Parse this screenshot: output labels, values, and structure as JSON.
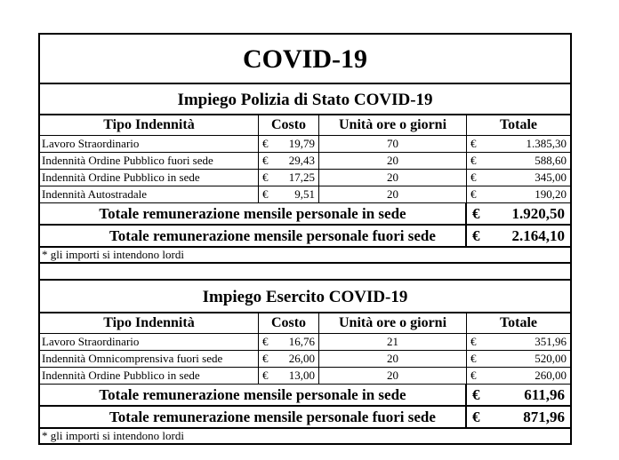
{
  "title": "COVID-19",
  "currency": "€",
  "sections": [
    {
      "heading": "Impiego Polizia di Stato COVID-19",
      "columns": [
        "Tipo Indennità",
        "Costo",
        "Unità ore o giorni",
        "Totale"
      ],
      "rows": [
        {
          "tipo": "Lavoro Straordinario",
          "costo": "19,79",
          "unita": "70",
          "totale": "1.385,30"
        },
        {
          "tipo": "Indennità Ordine Pubblico fuori sede",
          "costo": "29,43",
          "unita": "20",
          "totale": "588,60"
        },
        {
          "tipo": "Indennità Ordine Pubblico in sede",
          "costo": "17,25",
          "unita": "20",
          "totale": "345,00"
        },
        {
          "tipo": "Indennità Autostradale",
          "costo": "9,51",
          "unita": "20",
          "totale": "190,20"
        }
      ],
      "totals": [
        {
          "label": "Totale remunerazione mensile personale in sede",
          "value": "1.920,50"
        },
        {
          "label": "Totale remunerazione mensile personale fuori sede",
          "value": "2.164,10"
        }
      ],
      "note": "* gli importi si intendono lordi"
    },
    {
      "heading": "Impiego Esercito COVID-19",
      "columns": [
        "Tipo Indennità",
        "Costo",
        "Unità ore o giorni",
        "Totale"
      ],
      "rows": [
        {
          "tipo": "Lavoro Straordinario",
          "costo": "16,76",
          "unita": "21",
          "totale": "351,96"
        },
        {
          "tipo": "Indennità Omnicomprensiva  fuori sede",
          "costo": "26,00",
          "unita": "20",
          "totale": "520,00"
        },
        {
          "tipo": "Indennità Ordine Pubblico in sede",
          "costo": "13,00",
          "unita": "20",
          "totale": "260,00"
        }
      ],
      "totals": [
        {
          "label": "Totale remunerazione mensile personale in sede",
          "value": "611,96"
        },
        {
          "label": "Totale remunerazione mensile personale fuori sede",
          "value": "871,96"
        }
      ],
      "note": "* gli importi si intendono lordi"
    }
  ]
}
